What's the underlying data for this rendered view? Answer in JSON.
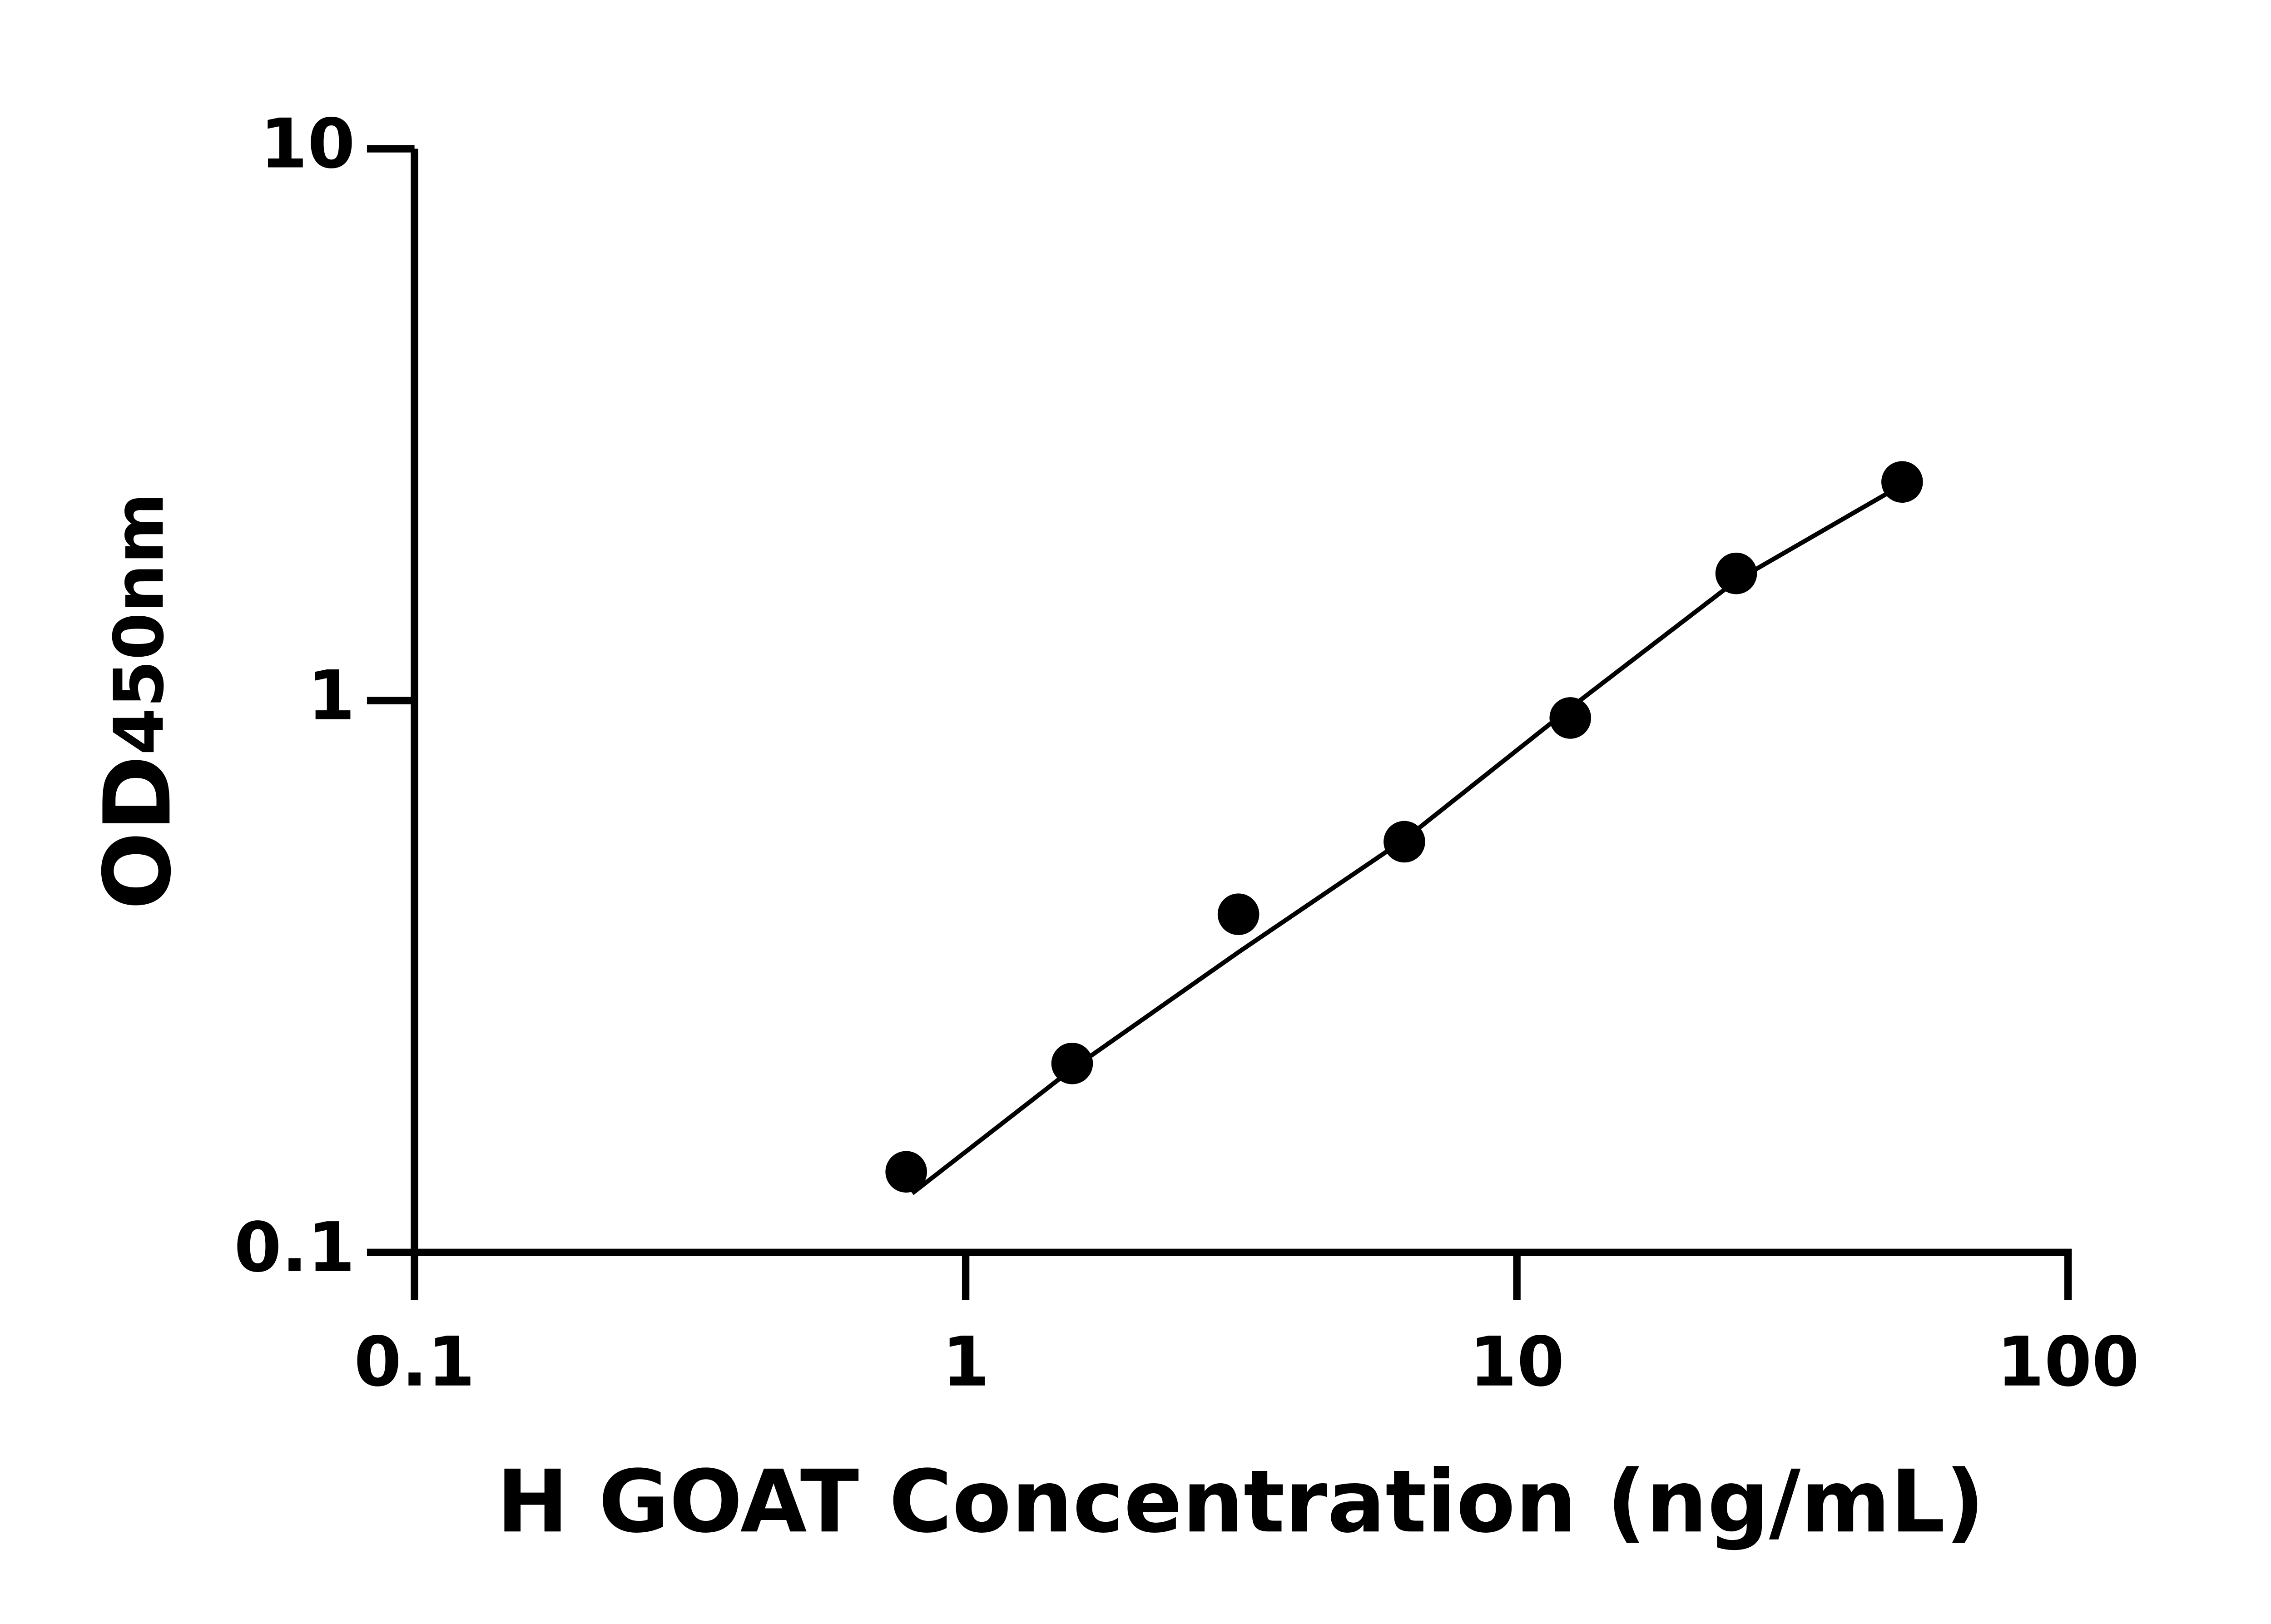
{
  "chart_data": {
    "type": "scatter",
    "xlabel": "H GOAT Concentration (ng/mL)",
    "ylabel": "OD",
    "ylabel_sub": "450nm",
    "xscale": "log",
    "yscale": "log",
    "xlim": [
      0.1,
      100
    ],
    "xticks": [
      0.1,
      1,
      10,
      100
    ],
    "ylim": [
      0.1,
      10
    ],
    "yticks": [
      0.1,
      1,
      10
    ],
    "color": "#000000",
    "x": [
      0.78,
      1.56,
      3.125,
      6.25,
      12.5,
      25,
      50
    ],
    "values": [
      0.14,
      0.22,
      0.41,
      0.555,
      0.93,
      1.7,
      2.49
    ],
    "fit": {
      "x": [
        0.8,
        1.56,
        3.125,
        6.25,
        12.5,
        25,
        50
      ],
      "values": [
        0.128,
        0.215,
        0.35,
        0.56,
        0.97,
        1.65,
        2.46
      ]
    }
  }
}
